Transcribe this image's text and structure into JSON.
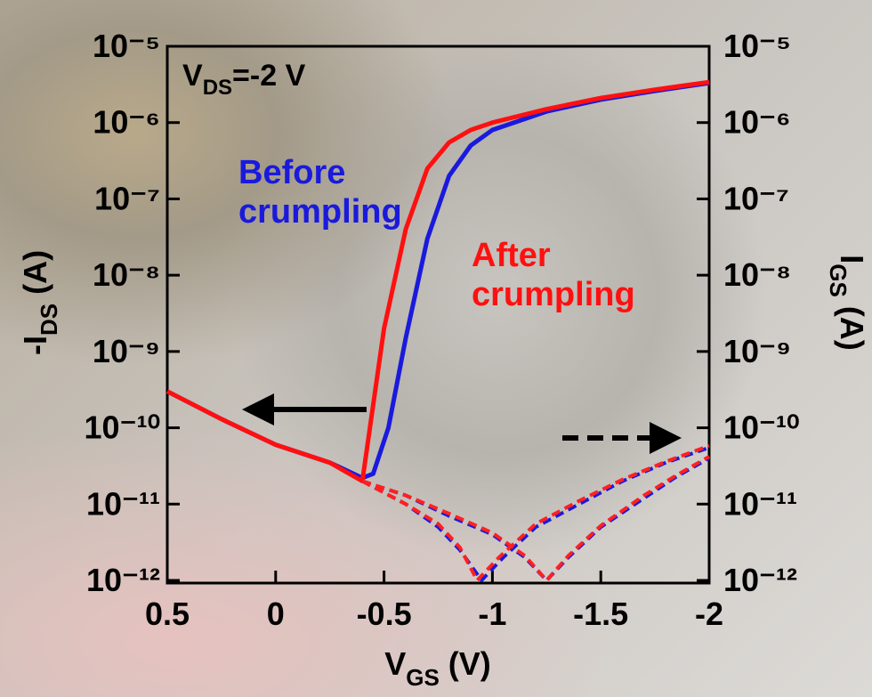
{
  "chart_data": {
    "type": "line",
    "y_scale": "log",
    "xlim": [
      0.5,
      -2
    ],
    "xticks": [
      0.5,
      0,
      -0.5,
      -1,
      -1.5,
      -2
    ],
    "ylim": [
      1e-12,
      1e-05
    ],
    "yticks": [
      {
        "value": 1e-05,
        "label": "10⁻⁵"
      },
      {
        "value": 1e-06,
        "label": "10⁻⁶"
      },
      {
        "value": 1e-07,
        "label": "10⁻⁷"
      },
      {
        "value": 1e-08,
        "label": "10⁻⁸"
      },
      {
        "value": 1e-09,
        "label": "10⁻⁹"
      },
      {
        "value": 1e-10,
        "label": "10⁻¹⁰"
      },
      {
        "value": 1e-11,
        "label": "10⁻¹¹"
      },
      {
        "value": 1e-12,
        "label": "10⁻¹²"
      }
    ],
    "y2lim": [
      1e-12,
      1e-05
    ],
    "y2ticks": [
      {
        "value": 1e-05,
        "label": "10⁻⁵"
      },
      {
        "value": 1e-06,
        "label": "10⁻⁶"
      },
      {
        "value": 1e-07,
        "label": "10⁻⁷"
      },
      {
        "value": 1e-08,
        "label": "10⁻⁸"
      },
      {
        "value": 1e-09,
        "label": "10⁻⁹"
      },
      {
        "value": 1e-10,
        "label": "10⁻¹⁰"
      },
      {
        "value": 1e-11,
        "label": "10⁻¹¹"
      },
      {
        "value": 1e-12,
        "label": "10⁻¹²"
      }
    ],
    "xlabel": {
      "main": "V",
      "sub": "GS",
      "unit": " (V)"
    },
    "ylabel": {
      "main": "-I",
      "sub": "DS",
      "unit": " (A)"
    },
    "y2label": {
      "main": "I",
      "sub": "GS",
      "unit": " (A)"
    },
    "annotation": {
      "main": "V",
      "sub": "DS",
      "rest": "=-2 V"
    },
    "series": [
      {
        "name": "Before crumpling",
        "color": "#1a1adc",
        "dashed": false,
        "x": [
          0.5,
          0.25,
          0,
          -0.25,
          -0.4,
          -0.45,
          -0.52,
          -0.6,
          -0.7,
          -0.8,
          -0.9,
          -1,
          -1.25,
          -1.5,
          -1.75,
          -2
        ],
        "values": [
          3e-10,
          1.3e-10,
          6e-11,
          3.5e-11,
          2.2e-11,
          2.5e-11,
          1e-10,
          1.5e-09,
          3e-08,
          2e-07,
          5e-07,
          8e-07,
          1.4e-06,
          2e-06,
          2.6e-06,
          3.3e-06
        ]
      },
      {
        "name": "After crumpling",
        "color": "#ff1010",
        "dashed": false,
        "x": [
          0.5,
          0.25,
          0,
          -0.25,
          -0.4,
          -0.45,
          -0.5,
          -0.6,
          -0.7,
          -0.8,
          -0.9,
          -1,
          -1.25,
          -1.5,
          -1.75,
          -2
        ],
        "values": [
          3e-10,
          1.3e-10,
          6e-11,
          3.5e-11,
          2e-11,
          2e-10,
          2e-09,
          4e-08,
          2.5e-07,
          5.5e-07,
          8e-07,
          1e-06,
          1.5e-06,
          2.1e-06,
          2.7e-06,
          3.4e-06
        ]
      },
      {
        "color": "#1a1adc",
        "dashed": true,
        "axis": "y2",
        "x": [
          -0.4,
          -0.6,
          -0.75,
          -0.85,
          -0.95,
          -1.05,
          -1.2,
          -1.4,
          -1.6,
          -1.8,
          -2
        ],
        "values": [
          2e-11,
          1e-11,
          5e-12,
          2.5e-12,
          1e-12,
          2e-12,
          5e-12,
          1e-11,
          2e-11,
          3.5e-11,
          5.5e-11
        ]
      },
      {
        "color": "#1a1adc",
        "dashed": true,
        "axis": "y2",
        "x": [
          -0.4,
          -0.6,
          -0.8,
          -1,
          -1.15,
          -1.25,
          -1.35,
          -1.5,
          -1.7,
          -1.85,
          -2
        ],
        "values": [
          2e-11,
          1.3e-11,
          7e-12,
          4e-12,
          2e-12,
          1e-12,
          2e-12,
          5e-12,
          1.2e-11,
          2.3e-11,
          4e-11
        ]
      },
      {
        "color": "#ff2020",
        "dashed": true,
        "axis": "y2",
        "x": [
          -0.4,
          -0.6,
          -0.75,
          -0.85,
          -0.93,
          -1.03,
          -1.2,
          -1.4,
          -1.6,
          -1.8,
          -2
        ],
        "values": [
          2e-11,
          1e-11,
          5.5e-12,
          2.7e-12,
          1e-12,
          2e-12,
          5.5e-12,
          1.1e-11,
          2.1e-11,
          3.6e-11,
          5.8e-11
        ]
      },
      {
        "color": "#ff2020",
        "dashed": true,
        "axis": "y2",
        "x": [
          -0.4,
          -0.6,
          -0.8,
          -1,
          -1.15,
          -1.25,
          -1.35,
          -1.5,
          -1.7,
          -1.85,
          -2
        ],
        "values": [
          2e-11,
          1.3e-11,
          7.5e-12,
          4.2e-12,
          2.1e-12,
          1e-12,
          2.1e-12,
          5.2e-12,
          1.3e-11,
          2.4e-11,
          4.2e-11
        ]
      }
    ]
  }
}
